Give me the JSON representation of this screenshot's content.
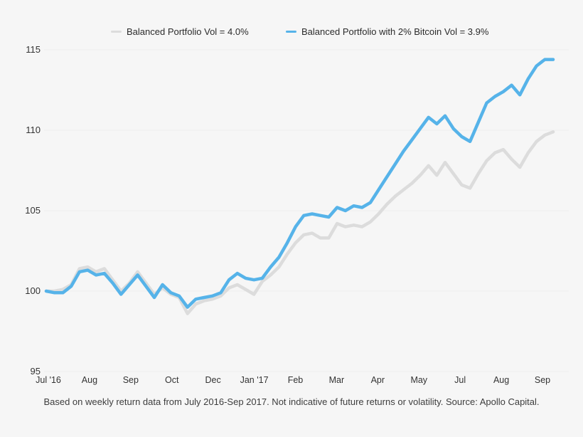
{
  "chart_data": {
    "type": "line",
    "title": "",
    "xlabel": "",
    "ylabel": "",
    "ylim": [
      95,
      115
    ],
    "y_ticks": [
      115,
      110,
      105,
      100,
      95
    ],
    "x_tick_labels": [
      "Jul '16",
      "Aug",
      "Sep",
      "Oct",
      "Dec",
      "Jan '17",
      "Feb",
      "Mar",
      "Apr",
      "May",
      "Jul",
      "Aug",
      "Sep"
    ],
    "x_unit": "weekly observations, Jul 2016 - Sep 2017",
    "grid": true,
    "legend_position": "top",
    "series": [
      {
        "name": "Balanced Portfolio Vol = 4.0%",
        "color": "#dcdcdc",
        "values": [
          100.0,
          100.0,
          100.1,
          100.4,
          101.4,
          101.5,
          101.2,
          101.4,
          100.7,
          100.0,
          100.5,
          101.2,
          100.5,
          99.8,
          100.2,
          99.8,
          99.6,
          98.6,
          99.2,
          99.4,
          99.5,
          99.7,
          100.2,
          100.4,
          100.1,
          99.8,
          100.6,
          101.0,
          101.5,
          102.3,
          103.0,
          103.5,
          103.6,
          103.3,
          103.3,
          104.2,
          104.0,
          104.1,
          104.0,
          104.3,
          104.8,
          105.4,
          105.9,
          106.3,
          106.7,
          107.2,
          107.8,
          107.2,
          108.0,
          107.3,
          106.6,
          106.4,
          107.3,
          108.1,
          108.6,
          108.8,
          108.2,
          107.7,
          108.6,
          109.3,
          109.7,
          109.9
        ]
      },
      {
        "name": "Balanced Portfolio with 2% Bitcoin Vol = 3.9%",
        "color": "#56b3e9",
        "values": [
          100.0,
          99.9,
          99.9,
          100.3,
          101.2,
          101.3,
          101.0,
          101.1,
          100.5,
          99.8,
          100.4,
          101.0,
          100.3,
          99.6,
          100.4,
          99.9,
          99.7,
          99.0,
          99.5,
          99.6,
          99.7,
          99.9,
          100.7,
          101.1,
          100.8,
          100.7,
          100.8,
          101.5,
          102.1,
          103.0,
          104.0,
          104.7,
          104.8,
          104.7,
          104.6,
          105.2,
          105.0,
          105.3,
          105.2,
          105.5,
          106.3,
          107.1,
          107.9,
          108.7,
          109.4,
          110.1,
          110.8,
          110.4,
          110.9,
          110.1,
          109.6,
          109.3,
          110.5,
          111.7,
          112.1,
          112.4,
          112.8,
          112.2,
          113.2,
          114.0,
          114.4,
          114.4
        ]
      }
    ]
  },
  "caption": {
    "text": "Based on weekly return data from July 2016-Sep 2017. Not indicative of future returns or volatility. Source: Apollo Capital."
  },
  "colors": {
    "background": "#f6f6f6",
    "gridline": "#ededed",
    "axis_text": "#333333"
  }
}
